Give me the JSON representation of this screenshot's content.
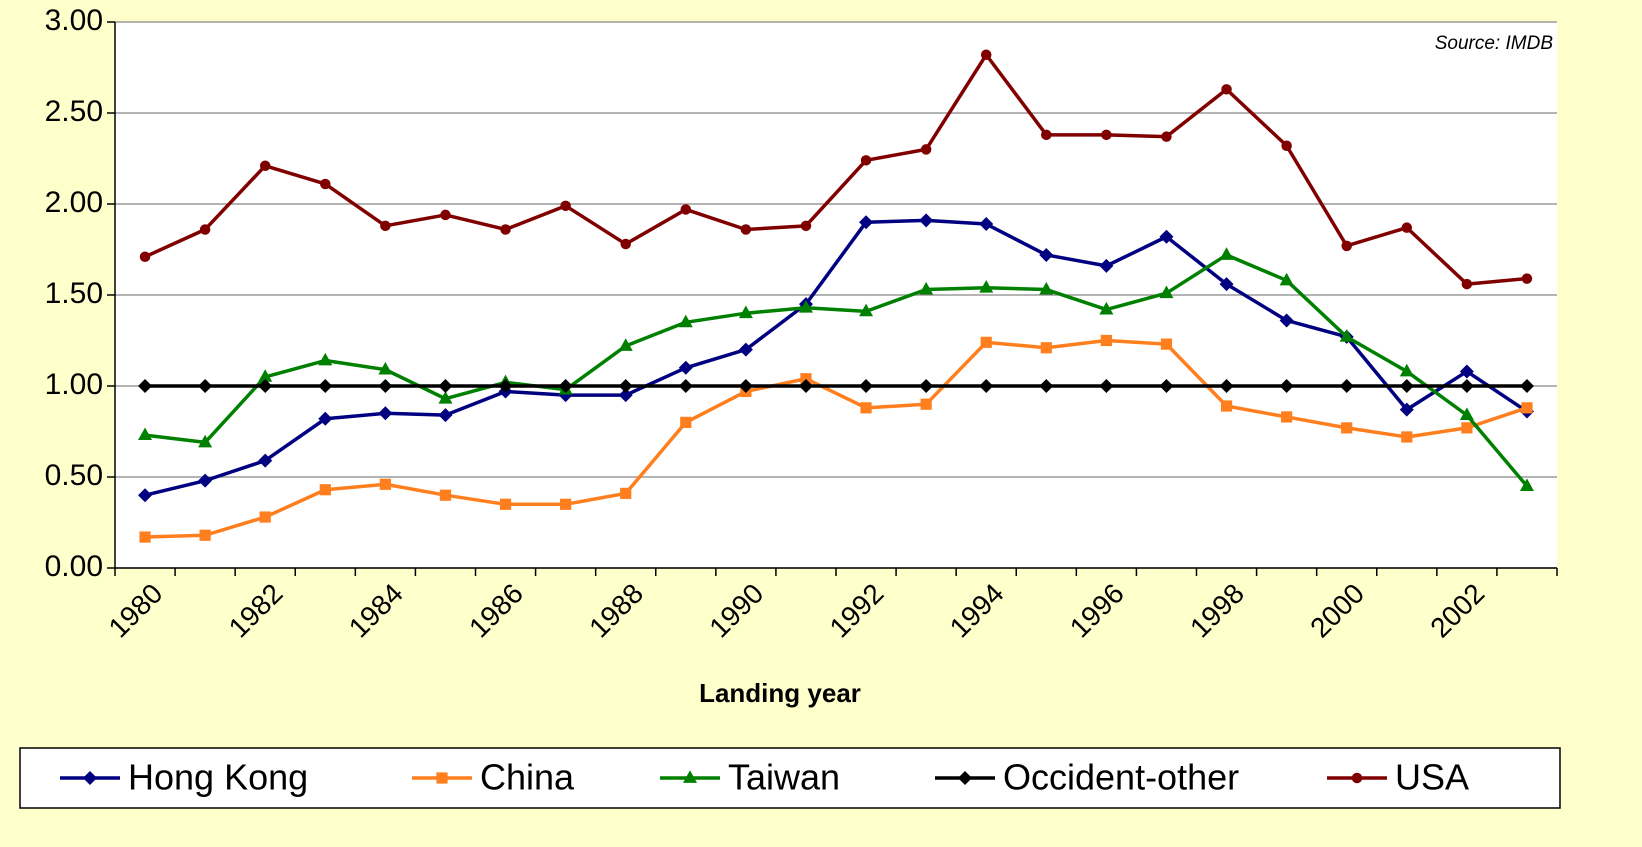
{
  "chart_data": {
    "type": "line",
    "source": "Source: IMDB",
    "x_label": "Landing year",
    "categories": [
      "1980",
      null,
      "1982",
      null,
      "1984",
      null,
      "1986",
      null,
      "1988",
      null,
      "1990",
      null,
      "1992",
      null,
      "1994",
      null,
      "1996",
      null,
      "1998",
      null,
      "2000",
      null,
      "2002",
      null
    ],
    "ylim": [
      0,
      3
    ],
    "yticks": [
      {
        "value": 0,
        "label": "0.00"
      },
      {
        "value": 0.5,
        "label": "0.50"
      },
      {
        "value": 1,
        "label": "1.00"
      },
      {
        "value": 1.5,
        "label": "1.50"
      },
      {
        "value": 2,
        "label": "2.00"
      },
      {
        "value": 2.5,
        "label": "2.50"
      },
      {
        "value": 3,
        "label": "3.00"
      }
    ],
    "grid": true,
    "legend": "bottom",
    "series": [
      {
        "name": "Hong Kong",
        "color": "#000080",
        "marker": "diamond",
        "values": [
          0.4,
          0.48,
          0.59,
          0.82,
          0.85,
          0.84,
          0.97,
          0.95,
          0.95,
          1.1,
          1.2,
          1.45,
          1.9,
          1.91,
          1.89,
          1.72,
          1.66,
          1.82,
          1.56,
          1.36,
          1.27,
          0.87,
          1.08,
          0.86
        ]
      },
      {
        "name": "China",
        "color": "#ff7f1e",
        "marker": "square",
        "values": [
          0.17,
          0.18,
          0.28,
          0.43,
          0.46,
          0.4,
          0.35,
          0.35,
          0.41,
          0.8,
          0.97,
          1.04,
          0.88,
          0.9,
          1.24,
          1.21,
          1.25,
          1.23,
          0.89,
          0.83,
          0.77,
          0.72,
          0.77,
          0.88
        ]
      },
      {
        "name": "Taiwan",
        "color": "#008000",
        "marker": "triangle",
        "values": [
          0.73,
          0.69,
          1.05,
          1.14,
          1.09,
          0.93,
          1.02,
          0.98,
          1.22,
          1.35,
          1.4,
          1.43,
          1.41,
          1.53,
          1.54,
          1.53,
          1.42,
          1.51,
          1.72,
          1.58,
          1.27,
          1.08,
          0.84,
          0.45
        ]
      },
      {
        "name": "Occident-other",
        "color": "#000000",
        "marker": "diamond",
        "values": [
          1,
          1,
          1,
          1,
          1,
          1,
          1,
          1,
          1,
          1,
          1,
          1,
          1,
          1,
          1,
          1,
          1,
          1,
          1,
          1,
          1,
          1,
          1,
          1
        ]
      },
      {
        "name": "USA",
        "color": "#800000",
        "marker": "circle",
        "values": [
          1.71,
          1.86,
          2.21,
          2.11,
          1.88,
          1.94,
          1.86,
          1.99,
          1.78,
          1.97,
          1.86,
          1.88,
          2.24,
          2.3,
          2.82,
          2.38,
          2.38,
          2.37,
          2.63,
          2.32,
          1.77,
          1.87,
          1.56,
          1.59
        ]
      }
    ]
  }
}
